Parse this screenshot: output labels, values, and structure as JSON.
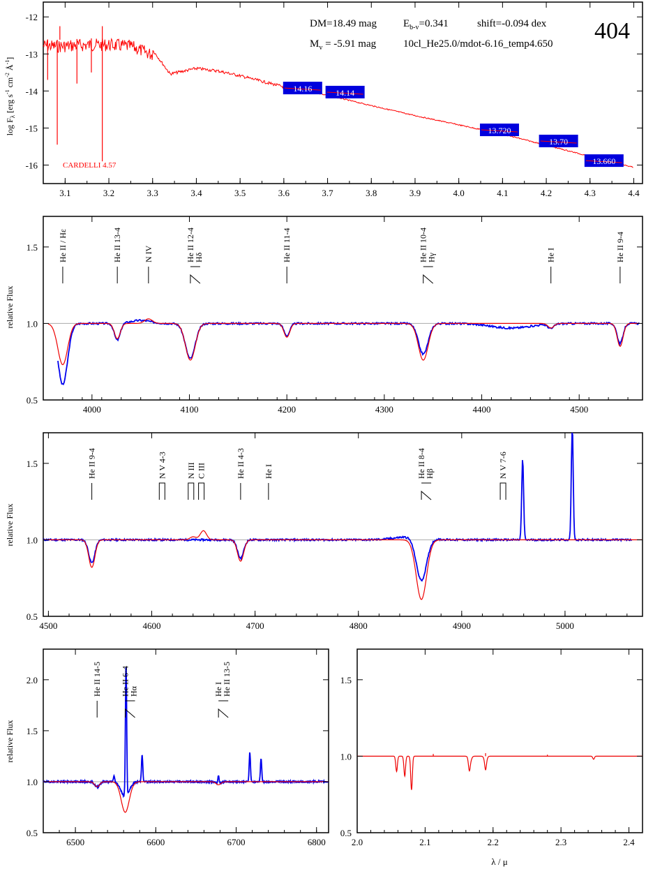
{
  "figure_id": "404",
  "info": {
    "dm": "DM=18.49 mag",
    "mv": "M",
    "mv_sub": "v",
    "mv_val": " =  -5.91 mag",
    "ebv": "E",
    "ebv_sub": "b-v",
    "ebv_val": "=0.341",
    "shift": "shift=-0.094 dex",
    "model": "10cl_He25.0/mdot-6.16_temp4.650"
  },
  "sed": {
    "ylabel": "log F",
    "ylabel_sub": "λ",
    "ylabel_units": " [erg s",
    "ylabel_units2": " cm",
    "ylabel_units3": " Å",
    "ylabel_sup1": "-1",
    "ylabel_sup2": "-2",
    "ylabel_sup3": "-1",
    "ylabel_end": "]",
    "reddening_label": "CARDELLI 4.57",
    "xlim": [
      3.05,
      4.42
    ],
    "ylim": [
      -16.5,
      -11.6
    ],
    "xticks": [
      "3.1",
      "3.2",
      "3.3",
      "3.4",
      "3.5",
      "3.6",
      "3.7",
      "3.8",
      "3.9",
      "4.0",
      "4.1",
      "4.2",
      "4.3",
      "4.4"
    ],
    "yticks": [
      "-12",
      "-13",
      "-14",
      "-15",
      "-16"
    ],
    "photometry": [
      {
        "x": 3.643,
        "y": -13.92,
        "label": "14.16"
      },
      {
        "x": 3.74,
        "y": -14.03,
        "label": "14.14"
      },
      {
        "x": 4.093,
        "y": -15.05,
        "label": "13.720"
      },
      {
        "x": 4.228,
        "y": -15.35,
        "label": "13.70"
      },
      {
        "x": 4.332,
        "y": -15.88,
        "label": "13.660"
      }
    ]
  },
  "panel_blue": {
    "ylabel": "relative Flux",
    "xlim": [
      3950,
      4565
    ],
    "ylim": [
      0.5,
      1.7
    ],
    "xticks": [
      "4000",
      "4100",
      "4200",
      "4300",
      "4400",
      "4500"
    ],
    "yticks": [
      "0.5",
      "1.0",
      "1.5"
    ],
    "lines": [
      {
        "x": 3970,
        "label": "He II / Hε",
        "mark": "single"
      },
      {
        "x": 4026,
        "label": "He II 13-4",
        "mark": "single"
      },
      {
        "x": 4058,
        "label": "N IV",
        "mark": "single"
      },
      {
        "x": 4101,
        "label": "He II 12-4",
        "label2": "Hδ",
        "mark": "double"
      },
      {
        "x": 4200,
        "label": "He II 11-4",
        "mark": "single"
      },
      {
        "x": 4340,
        "label": "He II 10-4",
        "label2": "Hγ",
        "mark": "double"
      },
      {
        "x": 4471,
        "label": "He I",
        "mark": "single"
      },
      {
        "x": 4542,
        "label": "He II 9-4",
        "mark": "single"
      }
    ]
  },
  "panel_green": {
    "ylabel": "relative Flux",
    "xlim": [
      4495,
      5075
    ],
    "ylim": [
      0.5,
      1.7
    ],
    "xticks": [
      "4500",
      "4600",
      "4700",
      "4800",
      "4900",
      "5000"
    ],
    "yticks": [
      "0.5",
      "1.0",
      "1.5"
    ],
    "lines": [
      {
        "x": 4542,
        "label": "He II 9-4",
        "mark": "single"
      },
      {
        "x": 4610,
        "label": "N V 4-3",
        "mark": "bracket"
      },
      {
        "x": 4638,
        "label": "N III",
        "mark": "bracket"
      },
      {
        "x": 4648,
        "label": "C III",
        "mark": "bracket"
      },
      {
        "x": 4686,
        "label": "He II 4-3",
        "mark": "single"
      },
      {
        "x": 4713,
        "label": "He I",
        "mark": "single"
      },
      {
        "x": 4861,
        "label": "He II 8-4",
        "label2": "Hβ",
        "mark": "double"
      },
      {
        "x": 4940,
        "label": "N V 7-6",
        "mark": "bracket"
      }
    ]
  },
  "panel_red": {
    "ylabel": "relative Flux",
    "xlim": [
      6460,
      6815
    ],
    "ylim": [
      0.5,
      2.3
    ],
    "xticks": [
      "6500",
      "6600",
      "6700",
      "6800"
    ],
    "yticks": [
      "0.5",
      "1.0",
      "1.5",
      "2.0"
    ],
    "lines": [
      {
        "x": 6527,
        "label": "He II 14-5",
        "mark": "single"
      },
      {
        "x": 6562,
        "label": "He II 6-4",
        "label2": "Hα",
        "mark": "double"
      },
      {
        "x": 6678,
        "label": "He I",
        "label2": "He II 13-5",
        "mark": "double"
      }
    ]
  },
  "panel_ir": {
    "xlabel": "λ / μ",
    "xlim": [
      2.0,
      2.42
    ],
    "ylim": [
      0.5,
      1.7
    ],
    "xticks": [
      "2.0",
      "2.1",
      "2.2",
      "2.3",
      "2.4"
    ],
    "yticks": [
      "0.5",
      "1.0",
      "1.5"
    ]
  },
  "chart_data": [
    {
      "type": "line",
      "title": "",
      "xlabel": "",
      "ylabel": "log Fλ [erg s-1 cm-2 Å-1]",
      "xlim": [
        3.05,
        4.42
      ],
      "ylim": [
        -16.5,
        -11.6
      ],
      "series": [
        {
          "color": "#ff0000",
          "x": [
            3.05,
            3.08,
            3.12,
            3.16,
            3.2,
            3.25,
            3.3,
            3.34,
            3.4,
            3.45,
            3.5,
            3.6,
            3.7,
            3.8,
            3.9,
            4.0,
            4.1,
            4.2,
            4.3,
            4.4
          ],
          "y": [
            -12.6,
            -12.62,
            -12.6,
            -12.58,
            -12.58,
            -12.62,
            -12.85,
            -13.5,
            -13.35,
            -13.42,
            -13.55,
            -13.85,
            -14.1,
            -14.38,
            -14.65,
            -14.9,
            -15.15,
            -15.45,
            -15.75,
            -16.05
          ]
        }
      ],
      "annotations": [
        "14.16",
        "14.14",
        "13.720",
        "13.70",
        "13.660",
        "CARDELLI 4.57"
      ]
    },
    {
      "type": "line",
      "ylabel": "relative Flux",
      "xlim": [
        3950,
        4565
      ],
      "ylim": [
        0.5,
        1.7
      ],
      "absorption_lines": [
        {
          "x": 3970,
          "model_depth": 0.73,
          "obs_depth": 0.6,
          "width": 5
        },
        {
          "x": 4026,
          "model_depth": 0.9,
          "obs_depth": 0.89,
          "width": 3
        },
        {
          "x": 4101,
          "model_depth": 0.76,
          "obs_depth": 0.79,
          "width": 5
        },
        {
          "x": 4200,
          "model_depth": 0.91,
          "obs_depth": 0.92,
          "width": 3
        },
        {
          "x": 4340,
          "model_depth": 0.76,
          "obs_depth": 0.8,
          "width": 5
        },
        {
          "x": 4471,
          "model_depth": 0.97,
          "obs_depth": 0.97,
          "width": 3
        },
        {
          "x": 4542,
          "model_depth": 0.85,
          "obs_depth": 0.87,
          "width": 3
        }
      ]
    },
    {
      "type": "line",
      "ylabel": "relative Flux",
      "xlim": [
        4495,
        5075
      ],
      "ylim": [
        0.5,
        1.7
      ],
      "absorption_lines": [
        {
          "x": 4542,
          "model_depth": 0.82,
          "obs_depth": 0.85,
          "width": 3
        },
        {
          "x": 4686,
          "model_depth": 0.86,
          "obs_depth": 0.88,
          "width": 3
        },
        {
          "x": 4861,
          "model_depth": 0.61,
          "obs_depth": 0.72,
          "width": 5
        }
      ],
      "emission_lines": [
        {
          "x": 4959,
          "peak": 1.53
        },
        {
          "x": 5007,
          "peak": 1.75
        }
      ]
    },
    {
      "type": "line",
      "ylabel": "relative Flux",
      "xlim": [
        6460,
        6815
      ],
      "ylim": [
        0.5,
        2.3
      ],
      "absorption_lines": [
        {
          "x": 6527,
          "model_depth": 0.95,
          "obs_depth": 0.95,
          "width": 3
        },
        {
          "x": 6562,
          "model_depth": 0.7,
          "obs_depth": 0.85,
          "width": 5
        },
        {
          "x": 6678,
          "model_depth": 0.97,
          "obs_depth": 0.98,
          "width": 3
        }
      ],
      "emission_lines": [
        {
          "x": 6548,
          "peak": 1.06
        },
        {
          "x": 6563,
          "peak": 2.3
        },
        {
          "x": 6583,
          "peak": 1.27
        },
        {
          "x": 6678,
          "peak": 1.08
        },
        {
          "x": 6717,
          "peak": 1.29
        },
        {
          "x": 6731,
          "peak": 1.23
        }
      ]
    },
    {
      "type": "line",
      "xlabel": "λ / μ",
      "xlim": [
        2.0,
        2.42
      ],
      "ylim": [
        0.5,
        1.7
      ],
      "absorption_lines": [
        {
          "x": 2.058,
          "depth": 0.9
        },
        {
          "x": 2.07,
          "depth": 0.87
        },
        {
          "x": 2.08,
          "depth": 0.78
        },
        {
          "x": 2.165,
          "depth": 0.94
        },
        {
          "x": 2.189,
          "depth": 0.94
        },
        {
          "x": 2.348,
          "depth": 0.98
        }
      ]
    }
  ]
}
